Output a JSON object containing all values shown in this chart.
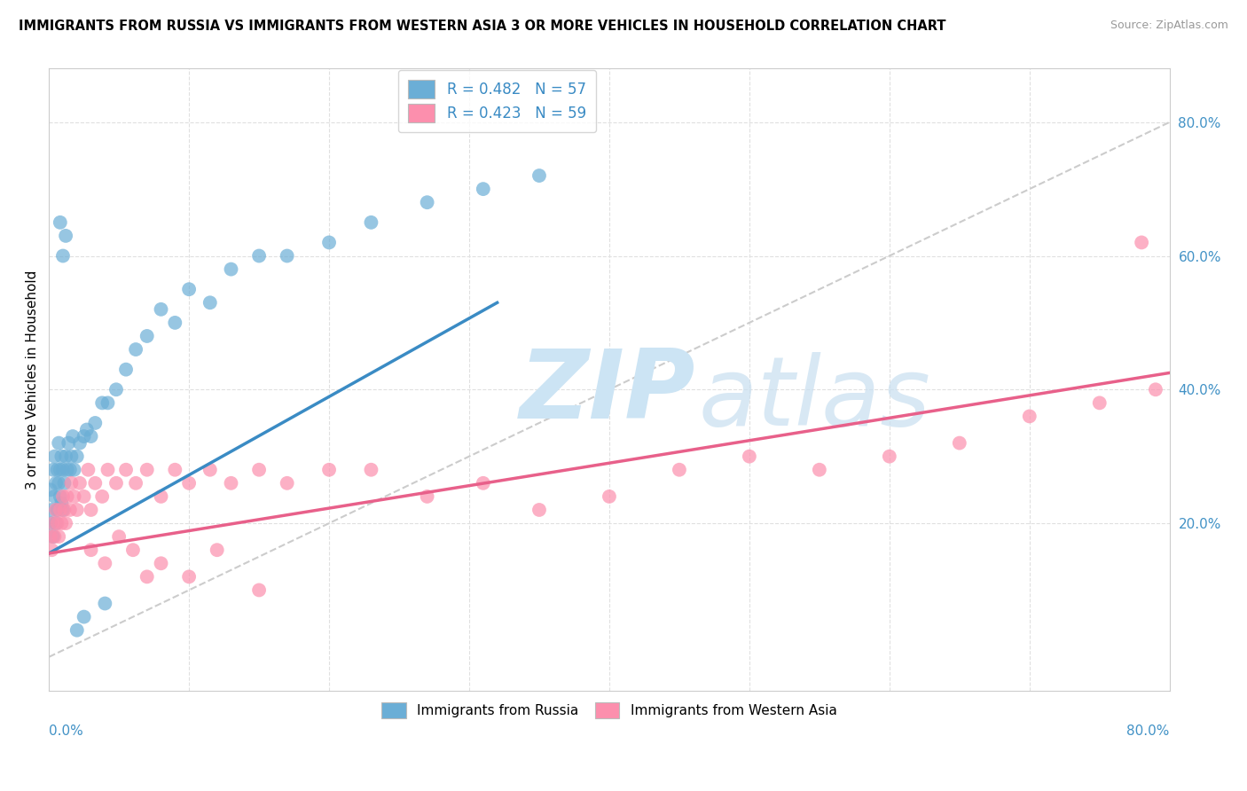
{
  "title": "IMMIGRANTS FROM RUSSIA VS IMMIGRANTS FROM WESTERN ASIA 3 OR MORE VEHICLES IN HOUSEHOLD CORRELATION CHART",
  "source": "Source: ZipAtlas.com",
  "ylabel": "3 or more Vehicles in Household",
  "ylabel_right_vals": [
    0.8,
    0.6,
    0.4,
    0.2
  ],
  "xlim": [
    0.0,
    0.8
  ],
  "ylim": [
    -0.05,
    0.88
  ],
  "legend1_label": "R = 0.482   N = 57",
  "legend2_label": "R = 0.423   N = 59",
  "legend_xlabel_left": "Immigrants from Russia",
  "legend_xlabel_right": "Immigrants from Western Asia",
  "russia_color": "#6baed6",
  "western_asia_color": "#fc8fad",
  "russia_line_color": "#3a8bc4",
  "western_asia_line_color": "#e8608a",
  "diag_color": "#cccccc",
  "grid_color": "#e0e0e0",
  "russia_trend_x0": 0.0,
  "russia_trend_y0": 0.155,
  "russia_trend_x1": 0.32,
  "russia_trend_y1": 0.53,
  "western_trend_x0": 0.0,
  "western_trend_y0": 0.155,
  "western_trend_x1": 0.8,
  "western_trend_y1": 0.425,
  "russia_x": [
    0.001,
    0.001,
    0.002,
    0.003,
    0.003,
    0.004,
    0.004,
    0.005,
    0.005,
    0.006,
    0.006,
    0.007,
    0.007,
    0.008,
    0.008,
    0.009,
    0.009,
    0.01,
    0.01,
    0.011,
    0.012,
    0.013,
    0.014,
    0.015,
    0.016,
    0.017,
    0.018,
    0.02,
    0.022,
    0.025,
    0.027,
    0.03,
    0.033,
    0.038,
    0.042,
    0.048,
    0.055,
    0.062,
    0.07,
    0.08,
    0.09,
    0.1,
    0.115,
    0.13,
    0.15,
    0.17,
    0.2,
    0.23,
    0.27,
    0.31,
    0.35,
    0.01,
    0.008,
    0.012,
    0.02,
    0.025,
    0.04
  ],
  "russia_y": [
    0.2,
    0.25,
    0.22,
    0.28,
    0.18,
    0.24,
    0.3,
    0.26,
    0.2,
    0.28,
    0.22,
    0.26,
    0.32,
    0.24,
    0.28,
    0.23,
    0.3,
    0.22,
    0.28,
    0.26,
    0.3,
    0.28,
    0.32,
    0.28,
    0.3,
    0.33,
    0.28,
    0.3,
    0.32,
    0.33,
    0.34,
    0.33,
    0.35,
    0.38,
    0.38,
    0.4,
    0.43,
    0.46,
    0.48,
    0.52,
    0.5,
    0.55,
    0.53,
    0.58,
    0.6,
    0.6,
    0.62,
    0.65,
    0.68,
    0.7,
    0.72,
    0.6,
    0.65,
    0.63,
    0.04,
    0.06,
    0.08
  ],
  "western_asia_x": [
    0.001,
    0.002,
    0.003,
    0.004,
    0.005,
    0.006,
    0.007,
    0.008,
    0.009,
    0.01,
    0.011,
    0.012,
    0.013,
    0.015,
    0.016,
    0.018,
    0.02,
    0.022,
    0.025,
    0.028,
    0.03,
    0.033,
    0.038,
    0.042,
    0.048,
    0.055,
    0.062,
    0.07,
    0.08,
    0.09,
    0.1,
    0.115,
    0.13,
    0.15,
    0.17,
    0.2,
    0.23,
    0.27,
    0.31,
    0.35,
    0.4,
    0.45,
    0.5,
    0.55,
    0.6,
    0.65,
    0.7,
    0.75,
    0.79,
    0.03,
    0.04,
    0.05,
    0.06,
    0.07,
    0.08,
    0.1,
    0.12,
    0.15,
    0.78
  ],
  "western_asia_y": [
    0.18,
    0.16,
    0.2,
    0.18,
    0.22,
    0.2,
    0.18,
    0.22,
    0.2,
    0.24,
    0.22,
    0.2,
    0.24,
    0.22,
    0.26,
    0.24,
    0.22,
    0.26,
    0.24,
    0.28,
    0.22,
    0.26,
    0.24,
    0.28,
    0.26,
    0.28,
    0.26,
    0.28,
    0.24,
    0.28,
    0.26,
    0.28,
    0.26,
    0.28,
    0.26,
    0.28,
    0.28,
    0.24,
    0.26,
    0.22,
    0.24,
    0.28,
    0.3,
    0.28,
    0.3,
    0.32,
    0.36,
    0.38,
    0.4,
    0.16,
    0.14,
    0.18,
    0.16,
    0.12,
    0.14,
    0.12,
    0.16,
    0.1,
    0.62
  ]
}
